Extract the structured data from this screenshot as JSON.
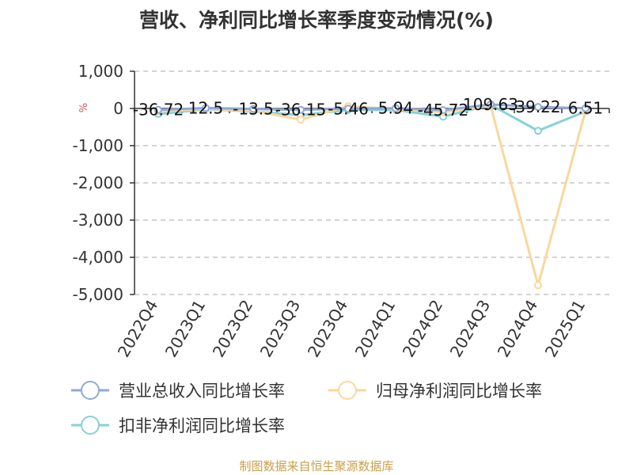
{
  "chart_data": {
    "type": "line",
    "title": "营收、净利同比增长率季度变动情况(%)",
    "unit_label": "%",
    "categories": [
      "2022Q4",
      "2023Q1",
      "2023Q2",
      "2023Q3",
      "2023Q4",
      "2024Q1",
      "2024Q2",
      "2024Q3",
      "2024Q4",
      "2025Q1"
    ],
    "ylim": [
      -5000,
      1000
    ],
    "yticks": [
      1000,
      0,
      -1000,
      -2000,
      -3000,
      -4000,
      -5000
    ],
    "ytick_labels": [
      "1,000",
      "0",
      "-1,000",
      "-2,000",
      "-3,000",
      "-4,000",
      "-5,000"
    ],
    "grid": true,
    "legend_position": "bottom",
    "series": [
      {
        "name": "营业总收入同比增长率",
        "color": "#8fa8d8",
        "values": [
          -36.72,
          12.5,
          -13.5,
          -36.15,
          -5.46,
          5.94,
          -45.72,
          109.63,
          39.22,
          6.51
        ]
      },
      {
        "name": "归母净利润同比增长率",
        "color": "#f9d89c",
        "values": [
          -80,
          -10,
          -60,
          -300,
          60,
          -20,
          -100,
          80,
          -4750,
          -60
        ]
      },
      {
        "name": "扣非净利润同比增长率",
        "color": "#86d1d8",
        "values": [
          -150,
          -20,
          -80,
          -180,
          -40,
          -40,
          -220,
          100,
          -600,
          -80
        ]
      }
    ],
    "data_labels": [
      "-36.72",
      "12.5",
      "-13.5",
      "-36.15",
      "-5.46",
      "5.94",
      "-45.72",
      "109.63",
      "39.22",
      "6.51"
    ]
  },
  "source": "制图数据来自恒生聚源数据库",
  "colors": {
    "axis": "#333333",
    "grid": "#bbbbbb",
    "unit": "#e05050",
    "source": "#c8a04a"
  }
}
